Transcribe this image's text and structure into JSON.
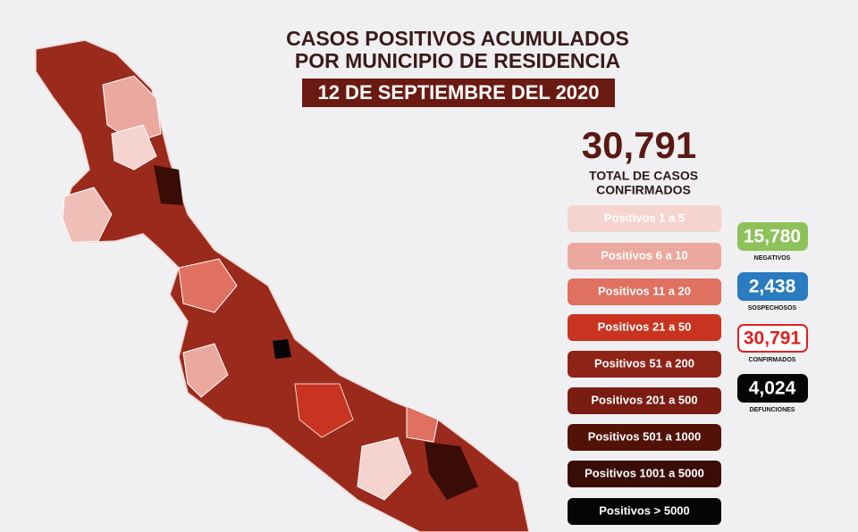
{
  "header": {
    "title_lines": [
      "CASOS POSITIVOS ACUMULADOS",
      "POR MUNICIPIO DE RESIDENCIA"
    ],
    "date": "12 DE SEPTIEMBRE DEL 2020"
  },
  "total": {
    "value": "30,791",
    "label_lines": [
      "TOTAL DE CASOS",
      "CONFIRMADOS"
    ]
  },
  "legend": {
    "items": [
      "Positivos 1 a 5",
      "Positivos 6 a 10",
      "Positivos 11 a 20",
      "Positivos 21 a 50",
      "Positivos 51 a 200",
      "Positivos 201 a 500",
      "Positivos 501 a 1000",
      "Positivos 1001 a 5000",
      "Positivos > 5000"
    ]
  },
  "stats": [
    {
      "value": "15,780",
      "label": "NEGATIVOS"
    },
    {
      "value": "2,438",
      "label": "SOSPECHOSOS"
    },
    {
      "value": "30,791",
      "label": "CONFIRMADOS"
    },
    {
      "value": "4,024",
      "label": "DEFUNCIONES"
    }
  ]
}
